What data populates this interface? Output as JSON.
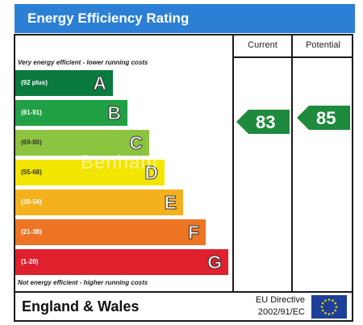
{
  "title": "Energy Efficiency Rating",
  "columns": {
    "current": "Current",
    "potential": "Potential"
  },
  "notes": {
    "top": "Very energy efficient - lower running costs",
    "bottom": "Not energy efficient - higher running costs"
  },
  "bands": [
    {
      "letter": "A",
      "range": "(92 plus)",
      "color": "#0a7a3e"
    },
    {
      "letter": "B",
      "range": "(81-91)",
      "color": "#22a045"
    },
    {
      "letter": "C",
      "range": "(69-80)",
      "color": "#8dc43f"
    },
    {
      "letter": "D",
      "range": "(55-68)",
      "color": "#f2e500"
    },
    {
      "letter": "E",
      "range": "(39-54)",
      "color": "#f5b11d"
    },
    {
      "letter": "F",
      "range": "(21-38)",
      "color": "#ec7423"
    },
    {
      "letter": "G",
      "range": "(1-20)",
      "color": "#e0202d"
    }
  ],
  "ratings": {
    "current": {
      "value": "83",
      "color": "#1e8a3e"
    },
    "potential": {
      "value": "85",
      "color": "#1e8a3e"
    }
  },
  "footer": {
    "region": "England & Wales",
    "directive_line1": "EU Directive",
    "directive_line2": "2002/91/EC"
  },
  "watermark": "Benham"
}
